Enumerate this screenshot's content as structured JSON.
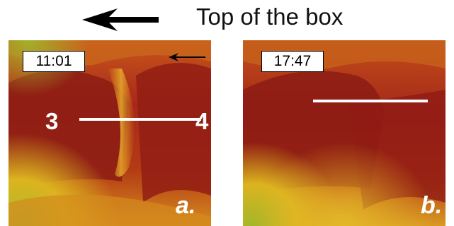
{
  "header": {
    "title": "Top of the box",
    "arrow_icon": "left-arrow-icon"
  },
  "panels": [
    {
      "id": "a",
      "timestamp": "11:01",
      "label": "a.",
      "marker_left": "3",
      "marker_right": "4",
      "has_direction_arrow": true
    },
    {
      "id": "b",
      "timestamp": "17:47",
      "label": "b."
    }
  ],
  "colors": {
    "dark_red": "#8f1a12",
    "mid_red": "#b83a14",
    "orange": "#d9731a",
    "yellow": "#e2b51f",
    "green": "#9bb22a",
    "overlay": "#ffffff"
  }
}
